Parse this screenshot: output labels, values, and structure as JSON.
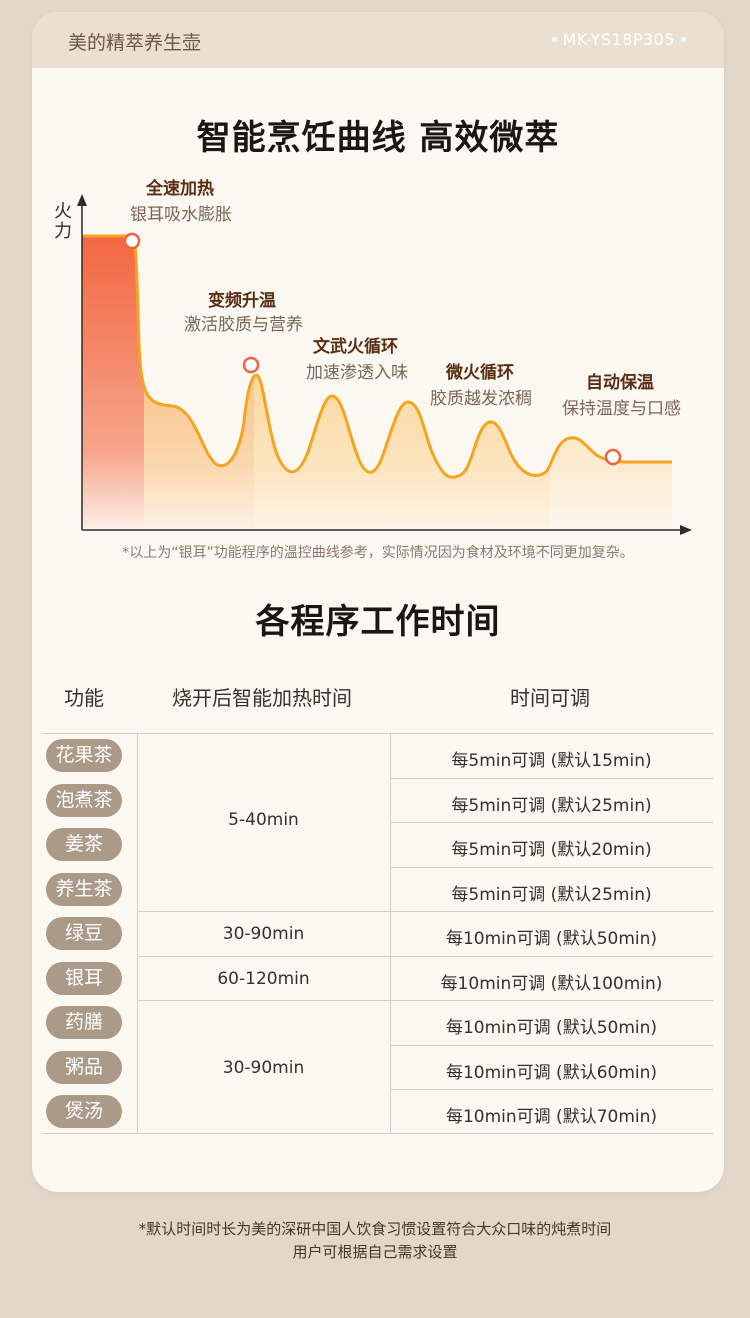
{
  "header": {
    "brand": "美的精萃养生壶",
    "model": "MK-YS18P305"
  },
  "chart_section": {
    "title": "智能烹饪曲线 高效微萃",
    "y_axis_label": "火力",
    "stages": [
      {
        "title": "全速加热",
        "desc": "银耳吸水膨胀"
      },
      {
        "title": "变频升温",
        "desc": "激活胶质与营养"
      },
      {
        "title": "文武火循环",
        "desc": "加速渗透入味"
      },
      {
        "title": "微火循环",
        "desc": "胶质越发浓稠"
      },
      {
        "title": "自动保温",
        "desc": "保持温度与口感"
      }
    ],
    "note": "*以上为“银耳”功能程序的温控曲线参考，实际情况因为食材及环境不同更加复杂。",
    "colors": {
      "hot": "#f2623a",
      "warm": "#f7b85a",
      "line": "#f5a623"
    }
  },
  "table_section": {
    "title": "各程序工作时间",
    "headers": [
      "功能",
      "烧开后智能加热时间",
      "时间可调"
    ],
    "groups": [
      "5-40min",
      "30-90min",
      "60-120min",
      "30-90min"
    ],
    "rows": [
      {
        "name": "花果茶",
        "adjust": "每5min可调 (默认15min)"
      },
      {
        "name": "泡煮茶",
        "adjust": "每5min可调 (默认25min)"
      },
      {
        "name": "姜茶",
        "adjust": "每5min可调 (默认20min)"
      },
      {
        "name": "养生茶",
        "adjust": "每5min可调 (默认25min)"
      },
      {
        "name": "绿豆",
        "adjust": "每10min可调 (默认50min)"
      },
      {
        "name": "银耳",
        "adjust": "每10min可调 (默认100min)"
      },
      {
        "name": "药膳",
        "adjust": "每10min可调 (默认50min)"
      },
      {
        "name": "粥品",
        "adjust": "每10min可调 (默认60min)"
      },
      {
        "name": "煲汤",
        "adjust": "每10min可调 (默认70min)"
      }
    ]
  },
  "footer": {
    "line1": "*默认时间时长为美的深研中国人饮食习惯设置符合大众口味的炖煮时间",
    "line2": "用户可根据自己需求设置"
  }
}
